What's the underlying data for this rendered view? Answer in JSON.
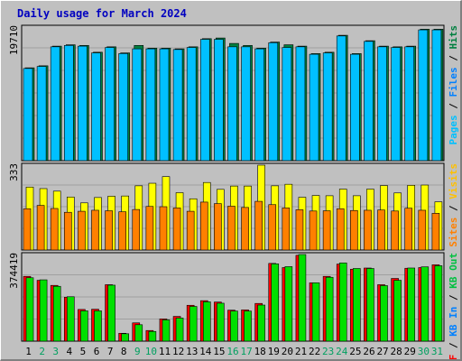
{
  "chart_data": [
    {
      "type": "bar",
      "title": "Daily usage for March 2024",
      "categories": [
        "1",
        "2",
        "3",
        "4",
        "5",
        "6",
        "7",
        "8",
        "9",
        "10",
        "11",
        "12",
        "13",
        "14",
        "15",
        "16",
        "17",
        "18",
        "19",
        "20",
        "21",
        "22",
        "23",
        "24",
        "25",
        "26",
        "27",
        "28",
        "29",
        "30",
        "31"
      ],
      "weekend_days": [
        "2",
        "3",
        "9",
        "10",
        "16",
        "17",
        "23",
        "24",
        "30",
        "31"
      ],
      "max_label": "19710",
      "legend": [
        "Pages",
        "Files",
        "Hits"
      ],
      "series": [
        {
          "name": "Hits",
          "values": [
            13700,
            14000,
            16900,
            17100,
            17000,
            16000,
            16800,
            15900,
            17000,
            16600,
            16600,
            16500,
            16800,
            18000,
            18100,
            17300,
            17000,
            16600,
            17500,
            17100,
            16900,
            15800,
            16000,
            18500,
            15800,
            17700,
            16900,
            16800,
            16900,
            19400,
            19400
          ]
        },
        {
          "name": "Files",
          "values": [
            13600,
            13900,
            16800,
            17000,
            16900,
            15900,
            16700,
            15800,
            16500,
            16500,
            16500,
            16400,
            16700,
            17900,
            17900,
            16800,
            16800,
            16500,
            17400,
            16700,
            16800,
            15700,
            15900,
            18400,
            15700,
            17600,
            16800,
            16700,
            16800,
            19300,
            19300
          ]
        },
        {
          "name": "Pages",
          "values": [
            13600,
            13900,
            16800,
            17000,
            16900,
            15900,
            16700,
            15800,
            16500,
            16500,
            16500,
            16400,
            16700,
            17900,
            17900,
            16800,
            16800,
            16500,
            17400,
            16700,
            16800,
            15700,
            15900,
            18400,
            15700,
            17600,
            16800,
            16700,
            16800,
            19300,
            19300
          ]
        }
      ]
    },
    {
      "type": "bar",
      "max_label": "333",
      "legend": [
        "Sites",
        "Visits"
      ],
      "series": [
        {
          "name": "Visits",
          "values": [
            247,
            241,
            231,
            208,
            185,
            206,
            211,
            212,
            252,
            262,
            288,
            225,
            201,
            265,
            238,
            251,
            251,
            333,
            252,
            258,
            207,
            214,
            213,
            239,
            213,
            239,
            253,
            224,
            254,
            255,
            189
          ]
        },
        {
          "name": "Sites",
          "values": [
            162,
            175,
            163,
            148,
            152,
            156,
            154,
            150,
            159,
            171,
            170,
            165,
            152,
            188,
            182,
            172,
            167,
            191,
            178,
            165,
            158,
            153,
            154,
            162,
            155,
            156,
            157,
            153,
            164,
            156,
            144
          ]
        }
      ]
    },
    {
      "type": "bar",
      "max_label": "374419",
      "legend": [
        "KB F",
        "KB In",
        "KB Out"
      ],
      "series": [
        {
          "name": "KB Out",
          "values": [
            274000,
            265000,
            237000,
            192000,
            131000,
            131000,
            242000,
            32000,
            71000,
            42000,
            92000,
            100000,
            150000,
            170000,
            164000,
            130000,
            130000,
            156000,
            334000,
            322000,
            374419,
            252000,
            276000,
            338000,
            314000,
            314000,
            240000,
            263000,
            316000,
            321000,
            326000
          ]
        },
        {
          "name": "KB F",
          "values": [
            280000,
            263000,
            241000,
            190000,
            137000,
            138000,
            244000,
            34000,
            79000,
            46000,
            96000,
            107000,
            155000,
            175000,
            169000,
            134000,
            135000,
            163000,
            336000,
            318000,
            371000,
            252000,
            280000,
            333000,
            311000,
            316000,
            244000,
            271000,
            315000,
            318000,
            330000
          ]
        }
      ]
    }
  ]
}
